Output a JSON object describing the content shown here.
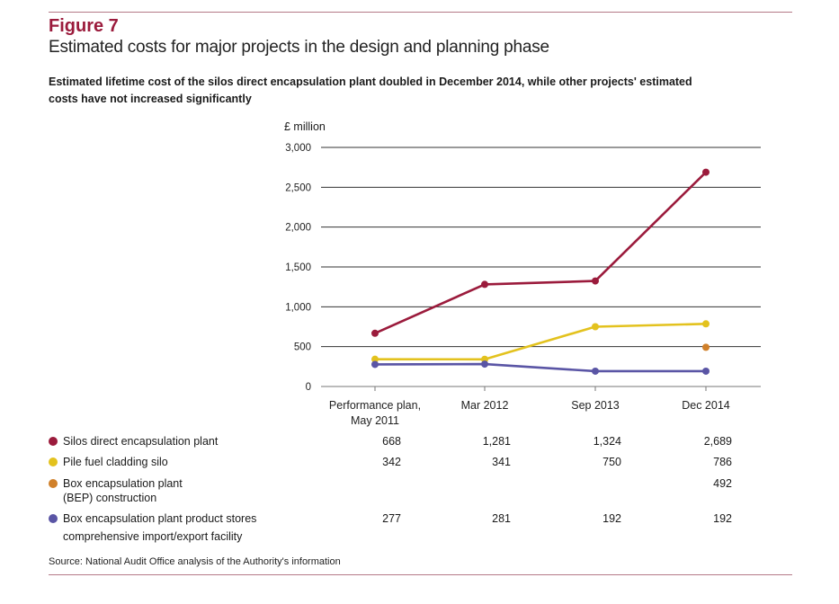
{
  "figure": {
    "label": "Figure 7",
    "title": "Estimated costs for major projects in the design and planning phase",
    "subtitle": "Estimated lifetime cost of the silos direct encapsulation plant doubled in December 2014, while other projects' estimated costs have not increased significantly",
    "source": "Source: National Audit Office analysis of the Authority's information"
  },
  "chart_data": {
    "type": "line",
    "title": "Estimated costs for major projects in the design and planning phase",
    "ylabel": "£ million",
    "xlabel": "",
    "ylim": [
      0,
      3000
    ],
    "yticks": [
      0,
      500,
      1000,
      1500,
      2000,
      2500,
      3000
    ],
    "ytick_labels": [
      "0",
      "500",
      "1,000",
      "1,500",
      "2,000",
      "2,500",
      "3,000"
    ],
    "grid": true,
    "legend": "bottom-table",
    "categories": [
      "Performance plan, May 2011",
      "Mar 2012",
      "Sep 2013",
      "Dec 2014"
    ],
    "category_lines": [
      [
        "Performance plan,",
        "May 2011"
      ],
      [
        "Mar 2012"
      ],
      [
        "Sep 2013"
      ],
      [
        "Dec 2014"
      ]
    ],
    "series": [
      {
        "name": "Silos direct encapsulation plant",
        "name_lines": [
          "Silos direct encapsulation plant"
        ],
        "color": "#9b1b3c",
        "values": [
          668,
          1281,
          1324,
          2689
        ],
        "labels": [
          "668",
          "1,281",
          "1,324",
          "2,689"
        ]
      },
      {
        "name": "Pile fuel cladding silo",
        "name_lines": [
          "Pile fuel cladding silo"
        ],
        "color": "#e3c21e",
        "values": [
          342,
          341,
          750,
          786
        ],
        "labels": [
          "342",
          "341",
          "750",
          "786"
        ]
      },
      {
        "name": "Box encapsulation plant (BEP) construction",
        "name_lines": [
          "Box encapsulation plant",
          "(BEP) construction"
        ],
        "color": "#d0802a",
        "values": [
          null,
          null,
          null,
          492
        ],
        "labels": [
          "",
          "",
          "",
          "492"
        ]
      },
      {
        "name": "Box encapsulation plant product stores comprehensive import/export facility",
        "name_lines": [
          "Box encapsulation plant product stores",
          "comprehensive import/export facility"
        ],
        "color": "#5a55a5",
        "values": [
          277,
          281,
          192,
          192
        ],
        "labels": [
          "277",
          "281",
          "192",
          "192"
        ]
      }
    ]
  }
}
